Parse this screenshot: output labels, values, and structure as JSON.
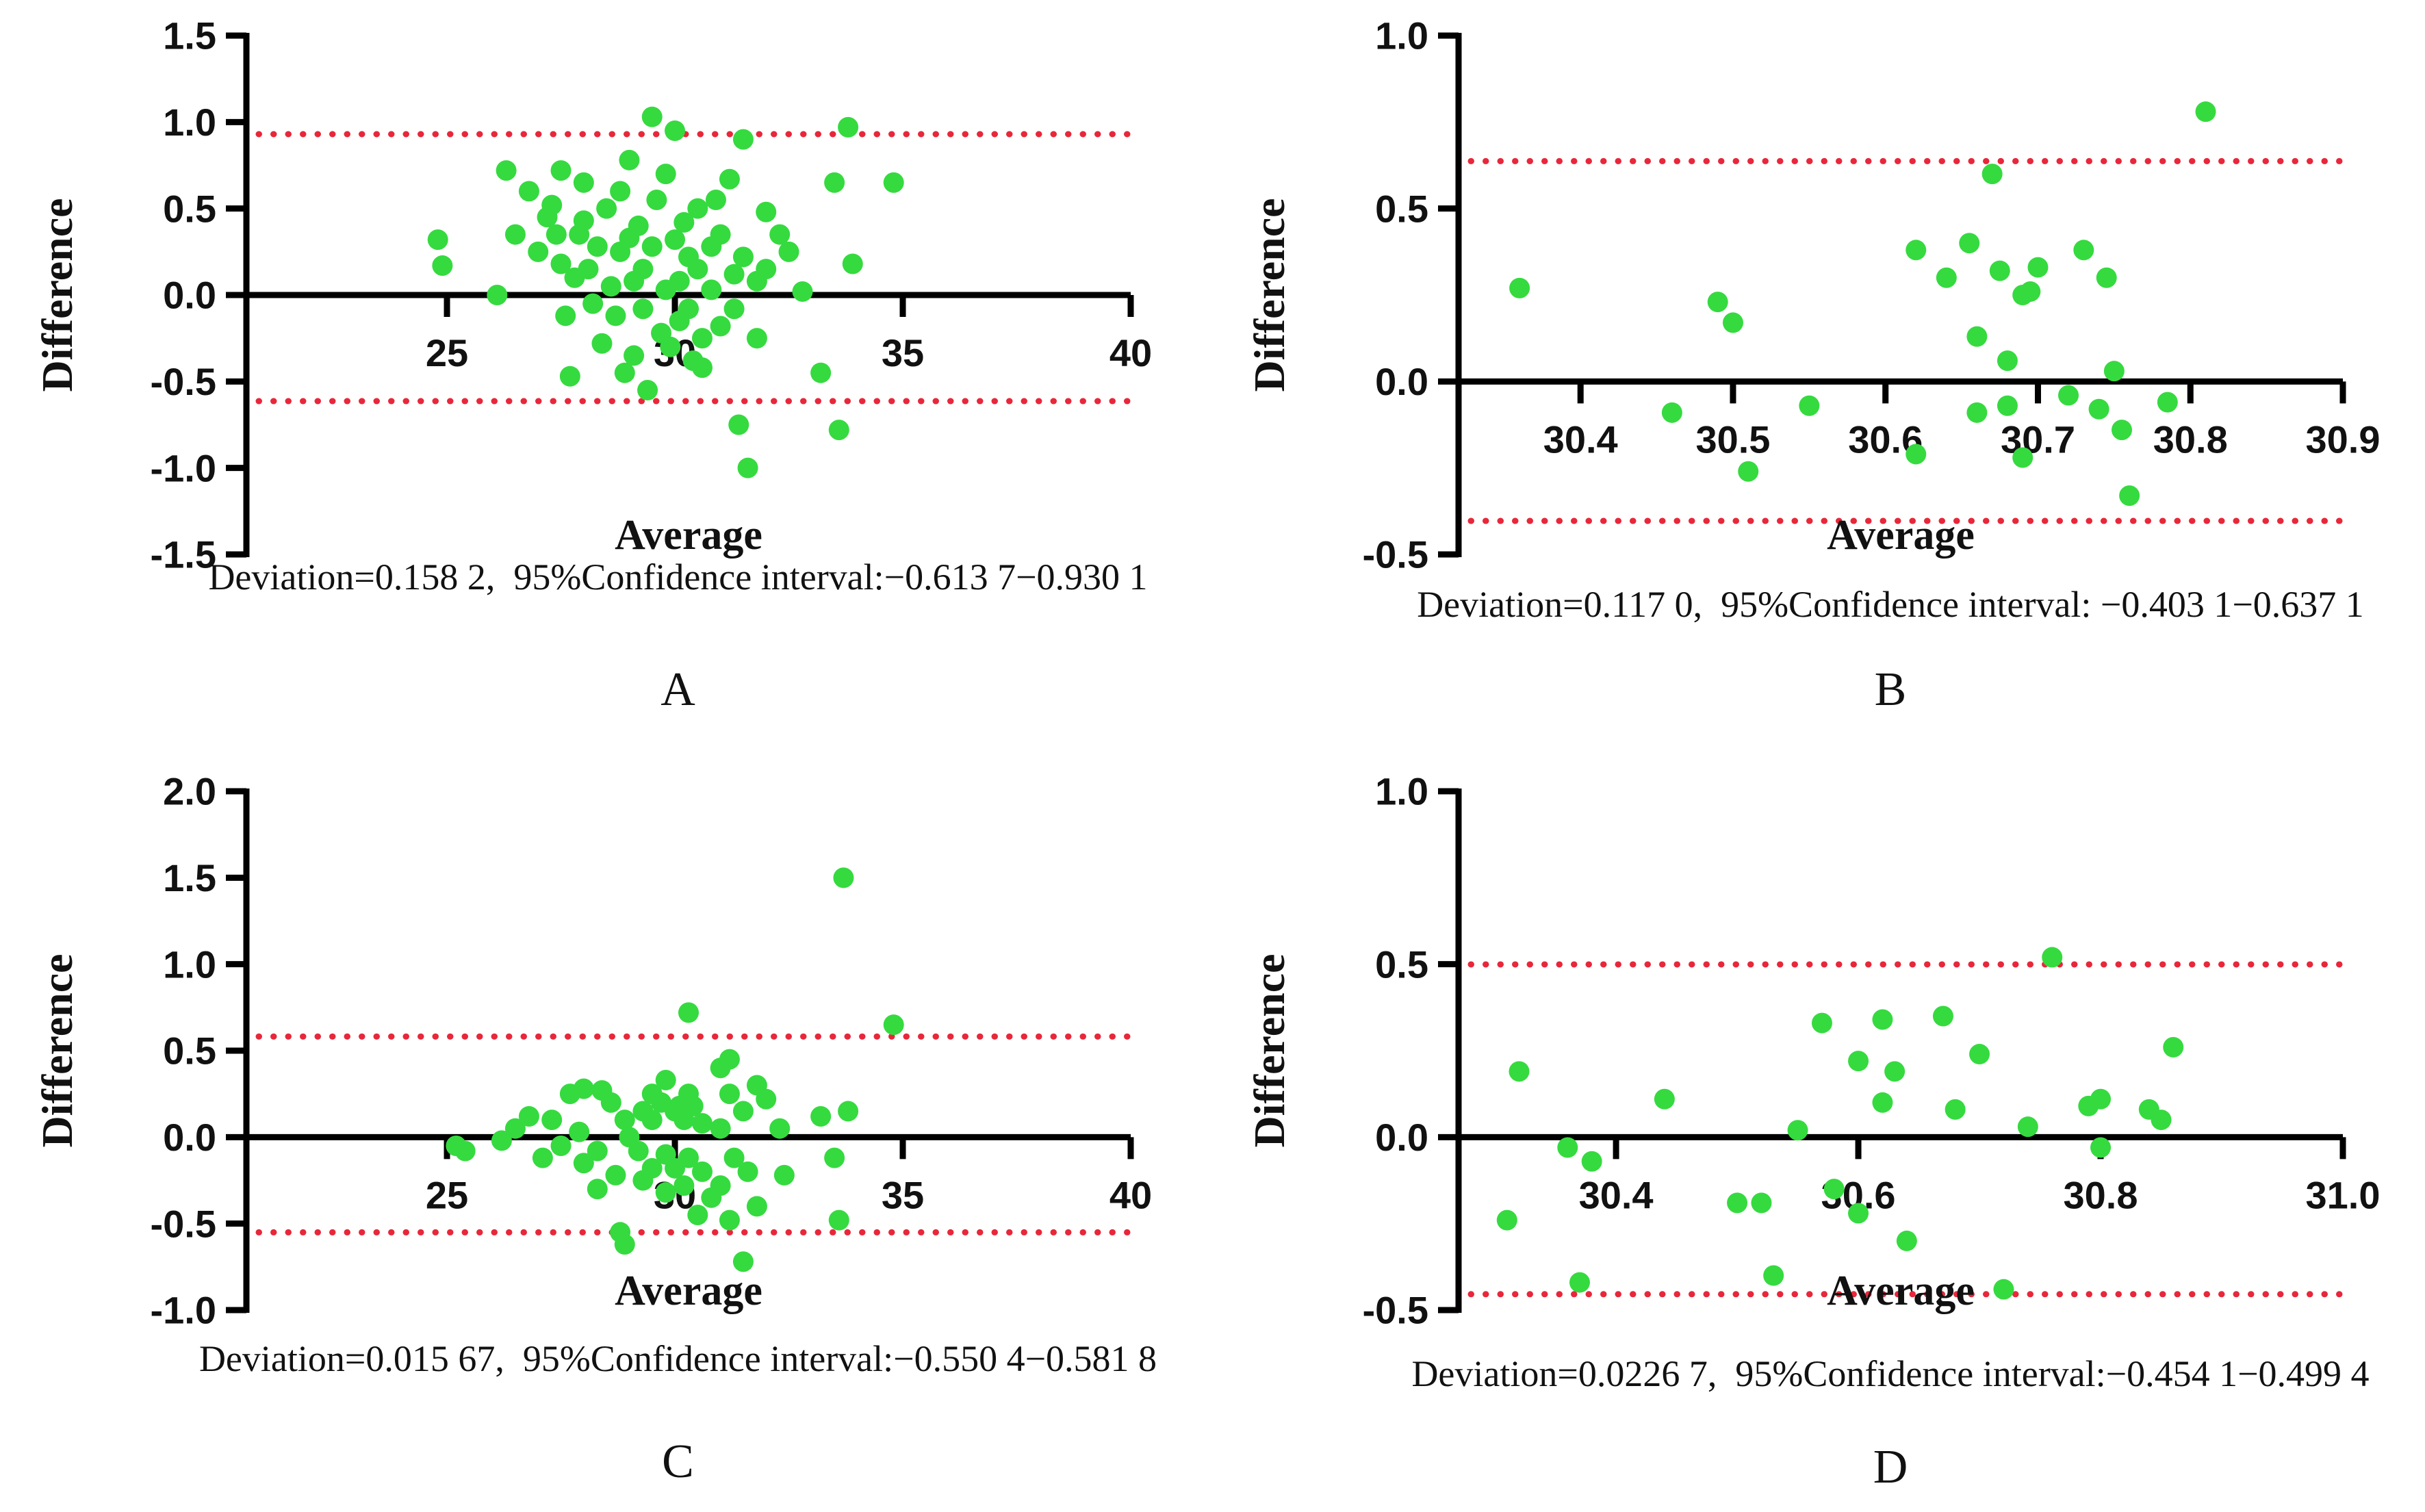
{
  "figure": {
    "background": "#ffffff",
    "point_color": "#35da3f",
    "loa_color": "#e8273a",
    "axis_color": "#000000",
    "text_color": "#111111"
  },
  "chart_data": [
    {
      "type": "scatter",
      "label": "A",
      "xlabel": "Average",
      "ylabel": "Difference",
      "caption": "Deviation=0.158 2,  95%Confidence interval:−0.613 7−0.930 1",
      "deviation_value": 0.1582,
      "loa_upper": 0.9301,
      "loa_lower": -0.6137,
      "zero_line": true,
      "xlim": [
        20.6,
        40
      ],
      "ylim": [
        -1.5,
        1.5
      ],
      "xticks": [
        25,
        30,
        35,
        40
      ],
      "xtick_labels": [
        "25",
        "30",
        "35",
        "40"
      ],
      "yticks": [
        1.5,
        1.0,
        0.5,
        0.0,
        -0.5,
        -1.0,
        -1.5
      ],
      "ytick_labels": [
        "1.5",
        "1.0",
        "0.5",
        "0.0",
        "-0.5",
        "-1.0",
        "-1.5"
      ],
      "points": [
        [
          24.8,
          0.32
        ],
        [
          24.9,
          0.17
        ],
        [
          26.1,
          0.0
        ],
        [
          26.3,
          0.72
        ],
        [
          26.5,
          0.35
        ],
        [
          26.8,
          0.6
        ],
        [
          27.0,
          0.25
        ],
        [
          27.2,
          0.45
        ],
        [
          27.3,
          0.52
        ],
        [
          27.4,
          0.35
        ],
        [
          27.5,
          0.72
        ],
        [
          27.5,
          0.18
        ],
        [
          27.6,
          -0.12
        ],
        [
          27.7,
          -0.47
        ],
        [
          27.8,
          0.1
        ],
        [
          27.9,
          0.35
        ],
        [
          28.0,
          0.65
        ],
        [
          28.0,
          0.43
        ],
        [
          28.1,
          0.15
        ],
        [
          28.2,
          -0.05
        ],
        [
          28.3,
          0.28
        ],
        [
          28.4,
          -0.28
        ],
        [
          28.5,
          0.5
        ],
        [
          28.6,
          0.05
        ],
        [
          28.7,
          -0.12
        ],
        [
          28.8,
          0.6
        ],
        [
          28.8,
          0.25
        ],
        [
          28.9,
          -0.45
        ],
        [
          29.0,
          0.78
        ],
        [
          29.0,
          0.33
        ],
        [
          29.1,
          0.08
        ],
        [
          29.1,
          -0.35
        ],
        [
          29.2,
          0.4
        ],
        [
          29.3,
          0.15
        ],
        [
          29.3,
          -0.08
        ],
        [
          29.4,
          -0.55
        ],
        [
          29.5,
          1.03
        ],
        [
          29.5,
          0.28
        ],
        [
          29.6,
          0.55
        ],
        [
          29.7,
          -0.22
        ],
        [
          29.8,
          0.7
        ],
        [
          29.8,
          0.03
        ],
        [
          29.9,
          -0.3
        ],
        [
          30.0,
          0.95
        ],
        [
          30.0,
          0.32
        ],
        [
          30.1,
          0.08
        ],
        [
          30.1,
          -0.15
        ],
        [
          30.2,
          0.42
        ],
        [
          30.3,
          0.22
        ],
        [
          30.3,
          -0.08
        ],
        [
          30.4,
          -0.38
        ],
        [
          30.5,
          0.5
        ],
        [
          30.5,
          0.15
        ],
        [
          30.6,
          -0.25
        ],
        [
          30.6,
          -0.42
        ],
        [
          30.8,
          0.28
        ],
        [
          30.8,
          0.03
        ],
        [
          30.9,
          0.55
        ],
        [
          31.0,
          0.35
        ],
        [
          31.0,
          -0.18
        ],
        [
          31.2,
          0.67
        ],
        [
          31.3,
          0.12
        ],
        [
          31.3,
          -0.08
        ],
        [
          31.4,
          -0.75
        ],
        [
          31.5,
          0.9
        ],
        [
          31.5,
          0.22
        ],
        [
          31.6,
          -1.0
        ],
        [
          31.8,
          0.08
        ],
        [
          31.8,
          -0.25
        ],
        [
          32.0,
          0.48
        ],
        [
          32.0,
          0.15
        ],
        [
          32.3,
          0.35
        ],
        [
          32.5,
          0.25
        ],
        [
          32.8,
          0.02
        ],
        [
          33.2,
          -0.45
        ],
        [
          33.5,
          0.65
        ],
        [
          33.6,
          -0.78
        ],
        [
          33.8,
          0.97
        ],
        [
          33.9,
          0.18
        ],
        [
          34.8,
          0.65
        ]
      ]
    },
    {
      "type": "scatter",
      "label": "B",
      "xlabel": "Average",
      "ylabel": "Difference",
      "caption": "Deviation=0.117 0,  95%Confidence interval: −0.403 1−0.637 1",
      "deviation_value": 0.117,
      "loa_upper": 0.6371,
      "loa_lower": -0.4031,
      "zero_line": true,
      "xlim": [
        30.32,
        30.9
      ],
      "ylim": [
        -0.5,
        1.0
      ],
      "xticks": [
        30.4,
        30.5,
        30.6,
        30.7,
        30.8,
        30.9
      ],
      "xtick_labels": [
        "30.4",
        "30.5",
        "30.6",
        "30.7",
        "30.8",
        "30.9"
      ],
      "yticks": [
        1.0,
        0.5,
        0.0,
        -0.5
      ],
      "ytick_labels": [
        "1.0",
        "0.5",
        "0.0",
        "-0.5"
      ],
      "points": [
        [
          30.36,
          0.27
        ],
        [
          30.46,
          -0.09
        ],
        [
          30.49,
          0.23
        ],
        [
          30.5,
          0.17
        ],
        [
          30.51,
          -0.26
        ],
        [
          30.55,
          -0.07
        ],
        [
          30.62,
          0.38
        ],
        [
          30.62,
          -0.21
        ],
        [
          30.64,
          0.3
        ],
        [
          30.655,
          0.4
        ],
        [
          30.66,
          0.13
        ],
        [
          30.66,
          -0.09
        ],
        [
          30.67,
          0.6
        ],
        [
          30.675,
          0.32
        ],
        [
          30.68,
          0.06
        ],
        [
          30.68,
          -0.07
        ],
        [
          30.69,
          0.25
        ],
        [
          30.695,
          0.26
        ],
        [
          30.69,
          -0.22
        ],
        [
          30.7,
          0.33
        ],
        [
          30.72,
          -0.04
        ],
        [
          30.73,
          0.38
        ],
        [
          30.74,
          -0.08
        ],
        [
          30.745,
          0.3
        ],
        [
          30.75,
          0.03
        ],
        [
          30.755,
          -0.14
        ],
        [
          30.76,
          -0.33
        ],
        [
          30.785,
          -0.06
        ],
        [
          30.81,
          0.78
        ]
      ]
    },
    {
      "type": "scatter",
      "label": "C",
      "xlabel": "Average",
      "ylabel": "Difference",
      "caption": "Deviation=0.015 67,  95%Confidence interval:−0.550 4−0.581 8",
      "deviation_value": 0.01567,
      "loa_upper": 0.5818,
      "loa_lower": -0.5504,
      "zero_line": true,
      "xlim": [
        20.6,
        40
      ],
      "ylim": [
        -1.0,
        2.0
      ],
      "xticks": [
        25,
        30,
        35,
        40
      ],
      "xtick_labels": [
        "25",
        "30",
        "35",
        "40"
      ],
      "yticks": [
        2.0,
        1.5,
        1.0,
        0.5,
        0.0,
        -0.5,
        -1.0
      ],
      "ytick_labels": [
        "2.0",
        "1.5",
        "1.0",
        "0.5",
        "0.0",
        "-0.5",
        "-1.0"
      ],
      "points": [
        [
          25.2,
          -0.05
        ],
        [
          25.4,
          -0.08
        ],
        [
          26.2,
          -0.02
        ],
        [
          26.5,
          0.05
        ],
        [
          26.8,
          0.12
        ],
        [
          27.1,
          -0.12
        ],
        [
          27.3,
          0.1
        ],
        [
          27.5,
          -0.05
        ],
        [
          27.7,
          0.25
        ],
        [
          27.9,
          0.03
        ],
        [
          28.0,
          0.28
        ],
        [
          28.0,
          -0.15
        ],
        [
          28.3,
          -0.08
        ],
        [
          28.3,
          -0.3
        ],
        [
          28.4,
          0.27
        ],
        [
          28.6,
          0.2
        ],
        [
          28.7,
          -0.22
        ],
        [
          28.8,
          -0.55
        ],
        [
          28.9,
          0.1
        ],
        [
          28.9,
          -0.62
        ],
        [
          29.0,
          0.0
        ],
        [
          29.2,
          -0.08
        ],
        [
          29.3,
          0.15
        ],
        [
          29.3,
          -0.25
        ],
        [
          29.5,
          0.25
        ],
        [
          29.5,
          0.1
        ],
        [
          29.5,
          -0.18
        ],
        [
          29.7,
          0.2
        ],
        [
          29.8,
          0.33
        ],
        [
          29.8,
          -0.1
        ],
        [
          29.8,
          -0.32
        ],
        [
          30.0,
          0.15
        ],
        [
          30.0,
          -0.18
        ],
        [
          30.1,
          0.18
        ],
        [
          30.2,
          0.1
        ],
        [
          30.2,
          -0.28
        ],
        [
          30.3,
          0.72
        ],
        [
          30.3,
          0.25
        ],
        [
          30.3,
          -0.12
        ],
        [
          30.4,
          0.18
        ],
        [
          30.5,
          -0.45
        ],
        [
          30.6,
          0.08
        ],
        [
          30.6,
          -0.2
        ],
        [
          30.8,
          -0.35
        ],
        [
          31.0,
          0.4
        ],
        [
          31.0,
          0.05
        ],
        [
          31.0,
          -0.28
        ],
        [
          31.2,
          0.45
        ],
        [
          31.2,
          0.25
        ],
        [
          31.2,
          -0.48
        ],
        [
          31.3,
          -0.12
        ],
        [
          31.5,
          0.15
        ],
        [
          31.5,
          -0.72
        ],
        [
          31.6,
          -0.2
        ],
        [
          31.8,
          0.3
        ],
        [
          31.8,
          -0.4
        ],
        [
          32.0,
          0.22
        ],
        [
          32.3,
          0.05
        ],
        [
          32.4,
          -0.22
        ],
        [
          33.2,
          0.12
        ],
        [
          33.5,
          -0.12
        ],
        [
          33.6,
          -0.48
        ],
        [
          33.7,
          1.5
        ],
        [
          33.8,
          0.15
        ],
        [
          34.8,
          0.65
        ]
      ]
    },
    {
      "type": "scatter",
      "label": "D",
      "xlabel": "Average",
      "ylabel": "Difference",
      "caption": "Deviation=0.0226 7,  95%Confidence interval:−0.454 1−0.499 4",
      "deviation_value": 0.02267,
      "loa_upper": 0.4994,
      "loa_lower": -0.4541,
      "zero_line": true,
      "xlim": [
        30.27,
        31.0
      ],
      "ylim": [
        -0.5,
        1.0
      ],
      "xticks": [
        30.4,
        30.6,
        30.8,
        31.0
      ],
      "xtick_labels": [
        "30.4",
        "30.6",
        "30.8",
        "31.0"
      ],
      "yticks": [
        1.0,
        0.5,
        0.0,
        -0.5
      ],
      "ytick_labels": [
        "1.0",
        "0.5",
        "0.0",
        "-0.5"
      ],
      "points": [
        [
          30.31,
          -0.24
        ],
        [
          30.32,
          0.19
        ],
        [
          30.36,
          -0.03
        ],
        [
          30.37,
          -0.42
        ],
        [
          30.38,
          -0.07
        ],
        [
          30.44,
          0.11
        ],
        [
          30.5,
          -0.19
        ],
        [
          30.52,
          -0.19
        ],
        [
          30.53,
          -0.4
        ],
        [
          30.55,
          0.02
        ],
        [
          30.57,
          0.33
        ],
        [
          30.58,
          -0.15
        ],
        [
          30.6,
          0.22
        ],
        [
          30.6,
          -0.22
        ],
        [
          30.62,
          0.34
        ],
        [
          30.62,
          0.1
        ],
        [
          30.63,
          0.19
        ],
        [
          30.64,
          -0.3
        ],
        [
          30.67,
          0.35
        ],
        [
          30.68,
          0.08
        ],
        [
          30.7,
          0.24
        ],
        [
          30.72,
          -0.44
        ],
        [
          30.74,
          0.03
        ],
        [
          30.76,
          0.52
        ],
        [
          30.79,
          0.09
        ],
        [
          30.8,
          0.11
        ],
        [
          30.8,
          -0.03
        ],
        [
          30.84,
          0.08
        ],
        [
          30.85,
          0.05
        ],
        [
          30.86,
          0.26
        ]
      ]
    }
  ]
}
